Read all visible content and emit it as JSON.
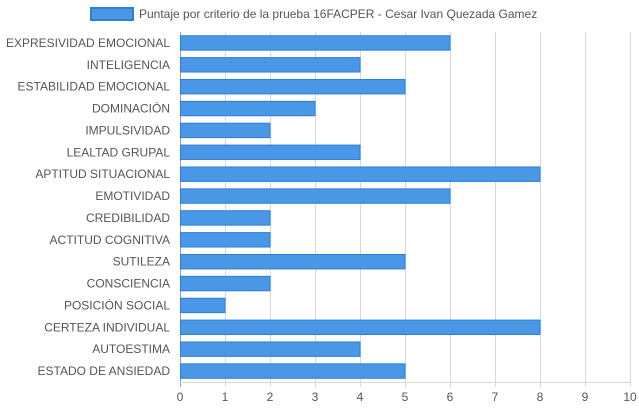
{
  "chart_data": {
    "type": "bar",
    "orientation": "horizontal",
    "categories": [
      "EXPRESIVIDAD EMOCIONAL",
      "INTELIGENCIA",
      "ESTABILIDAD EMOCIONAL",
      "DOMINACIÓN",
      "IMPULSIVIDAD",
      "LEALTAD GRUPAL",
      "APTITUD SITUACIONAL",
      "EMOTIVIDAD",
      "CREDIBILIDAD",
      "ACTITUD COGNITIVA",
      "SUTILEZA",
      "CONSCIENCIA",
      "POSICIÓN SOCIAL",
      "CERTEZA INDIVIDUAL",
      "AUTOESTIMA",
      "ESTADO DE ANSIEDAD"
    ],
    "series": [
      {
        "name": "Puntaje por criterio de la prueba 16FACPER - Cesar Ivan Quezada Gamez",
        "values": [
          6,
          4,
          5,
          3,
          2,
          4,
          8,
          6,
          2,
          2,
          5,
          2,
          1,
          8,
          4,
          5
        ]
      }
    ],
    "xlim": [
      0,
      10
    ],
    "ticks": [
      "0",
      "1",
      "2",
      "3",
      "4",
      "5",
      "6",
      "7",
      "8",
      "9",
      "10"
    ],
    "grid": true,
    "legend_position": "top",
    "colors": {
      "bar_fill": "#4a97e6",
      "bar_stroke": "#2f7fd6",
      "grid": "#d8d8d8",
      "axis": "#999999",
      "text": "#555555"
    }
  }
}
